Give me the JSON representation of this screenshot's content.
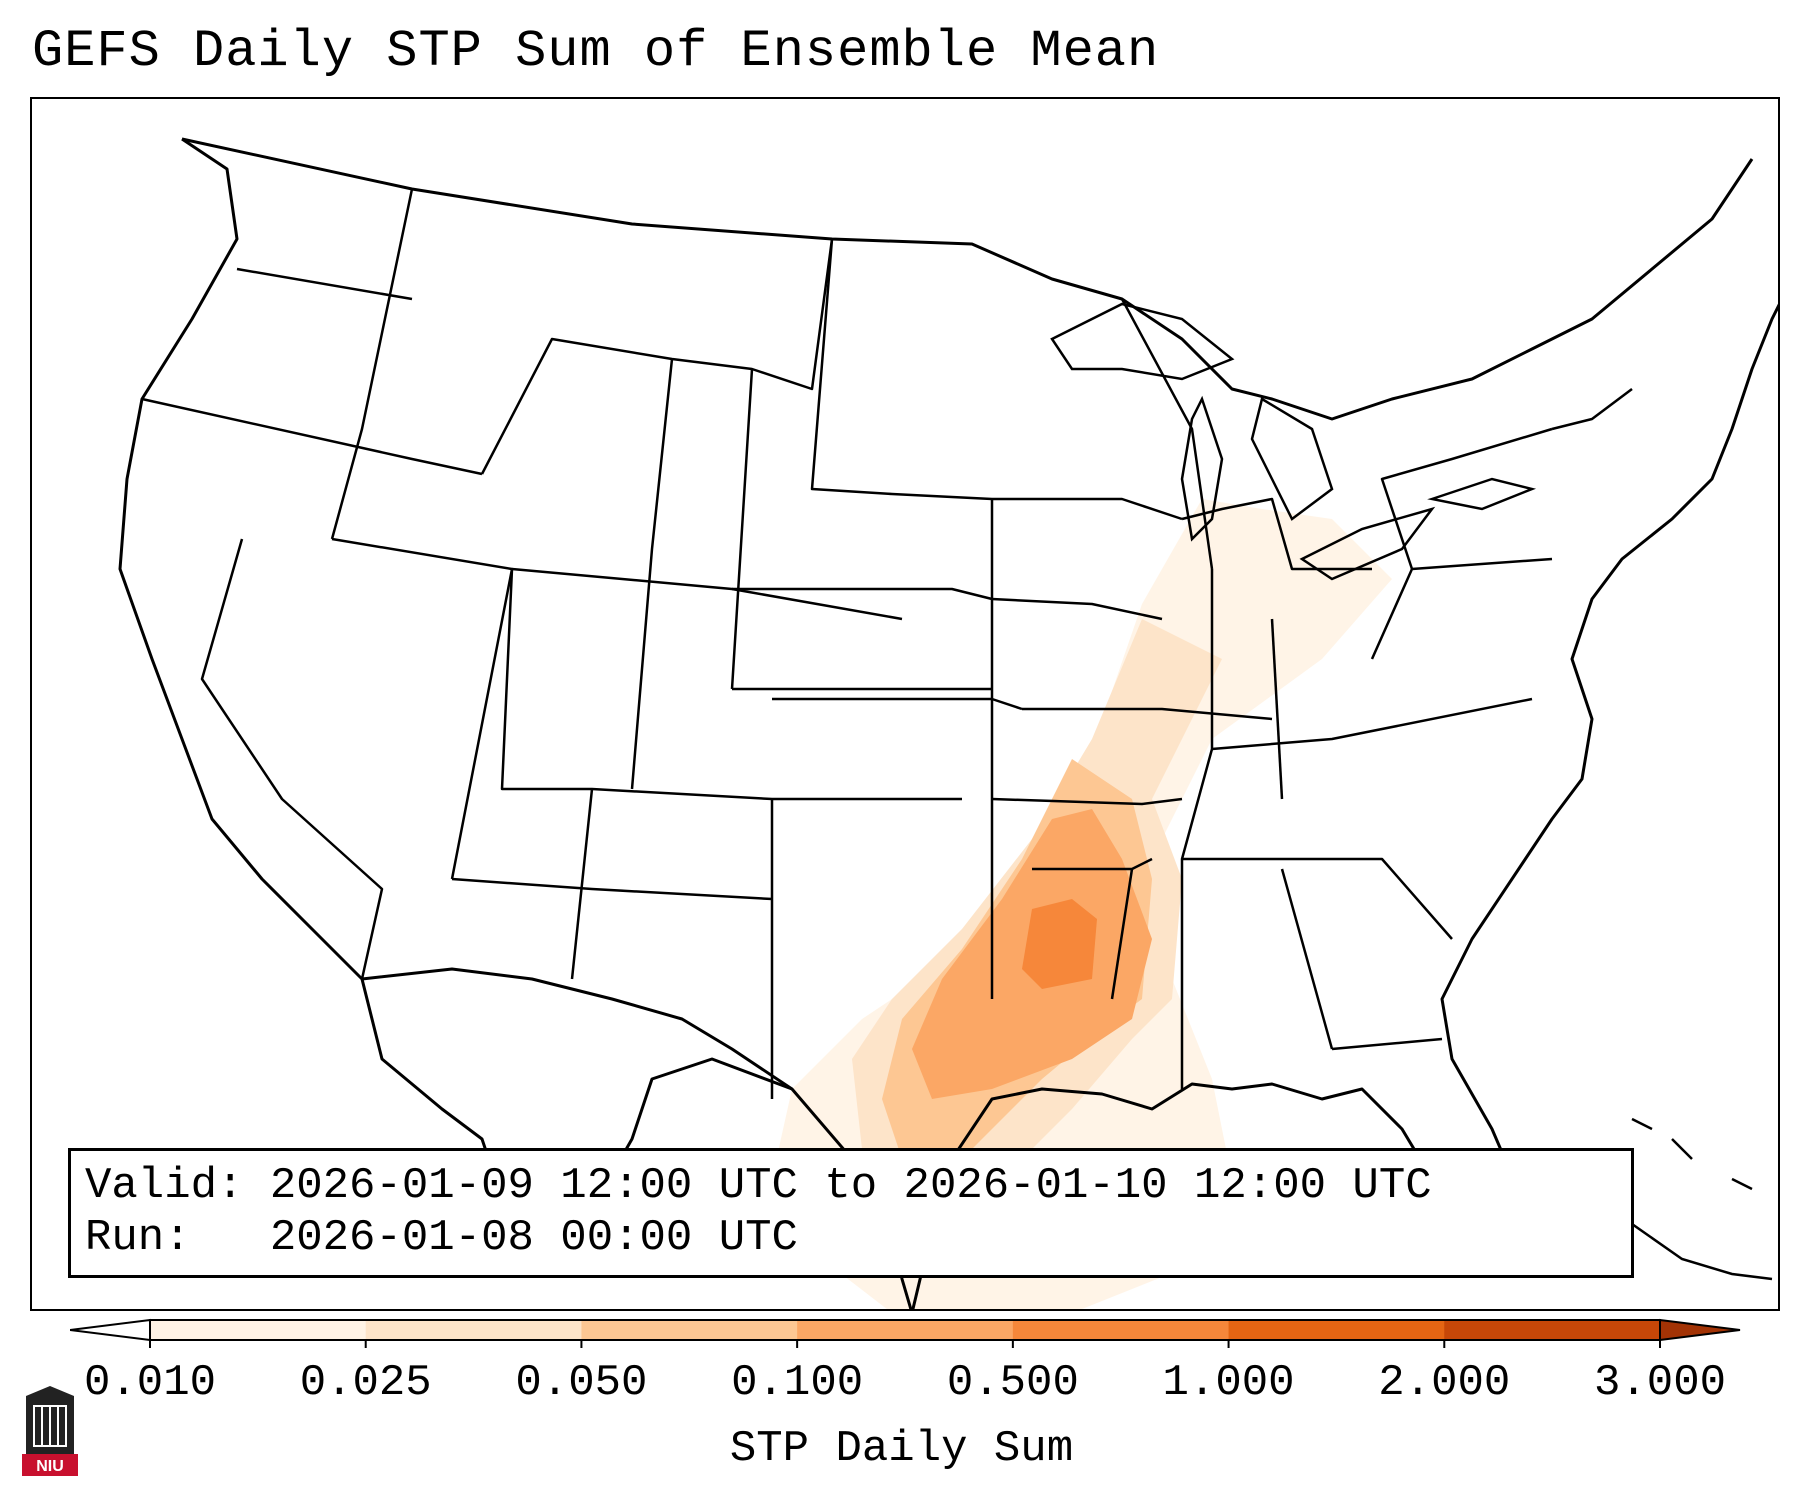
{
  "title": "GEFS Daily STP Sum of Ensemble Mean",
  "info": {
    "valid_label": "Valid:",
    "valid_value": "2026-01-09 12:00 UTC to 2026-01-10 12:00 UTC",
    "run_label": "Run:",
    "run_value": "2026-01-08 00:00 UTC"
  },
  "colorbar": {
    "label": "STP Daily Sum",
    "ticks": [
      "0.010",
      "0.025",
      "0.050",
      "0.100",
      "0.500",
      "1.000",
      "2.000",
      "3.000"
    ],
    "colors": [
      "#fff3e6",
      "#fde4c9",
      "#fdc793",
      "#fba765",
      "#f6873a",
      "#e46513",
      "#c64708"
    ],
    "extend_low_color": "#ffffff",
    "extend_high_color": "#a33305"
  },
  "logo": {
    "text": "NIU",
    "color": "#c8102e"
  }
}
